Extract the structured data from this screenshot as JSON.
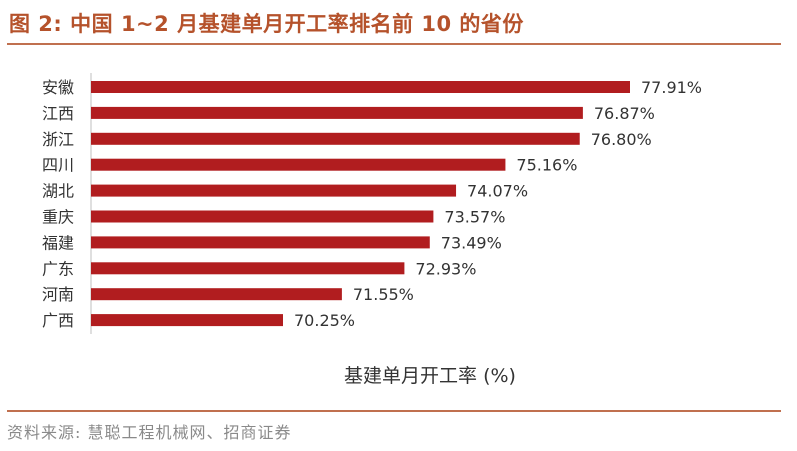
{
  "title": "图 2: 中国 1~2 月基建单月开工率排名前 10 的省份",
  "source": "资料来源: 慧聪工程机械网、招商证券",
  "colors": {
    "bar": "#b11d1f",
    "accent": "#b5522b",
    "axis": "#bfbfbf"
  },
  "chart_data": {
    "type": "bar",
    "orientation": "horizontal",
    "title": "",
    "xlabel": "基建单月开工率 (%)",
    "ylabel": "",
    "categories": [
      "安徽",
      "江西",
      "浙江",
      "四川",
      "湖北",
      "重庆",
      "福建",
      "广东",
      "河南",
      "广西"
    ],
    "values": [
      77.91,
      76.87,
      76.8,
      75.16,
      74.07,
      73.57,
      73.49,
      72.93,
      71.55,
      70.25
    ],
    "value_labels": [
      "77.91%",
      "76.87%",
      "76.80%",
      "75.16%",
      "74.07%",
      "73.57%",
      "73.49%",
      "72.93%",
      "71.55%",
      "70.25%"
    ],
    "grid": false,
    "legend": "none"
  }
}
